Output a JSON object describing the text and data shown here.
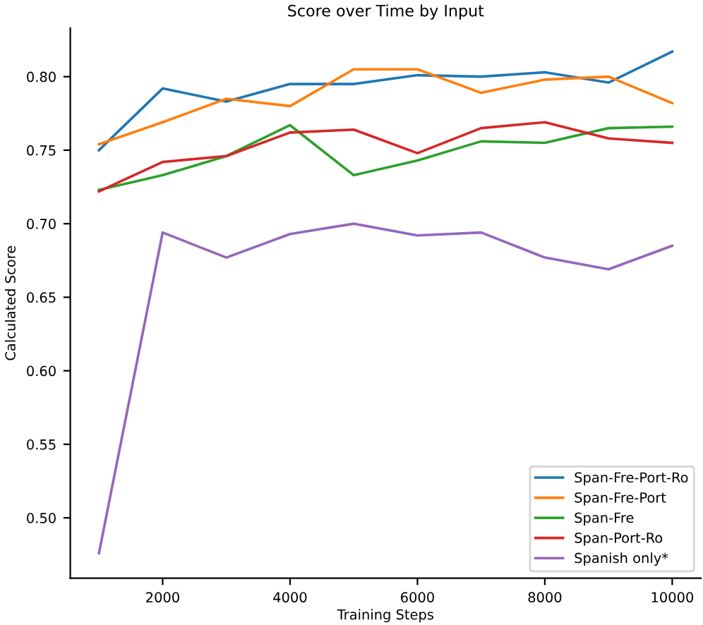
{
  "chart_data": {
    "type": "line",
    "title": "Score over Time by Input",
    "xlabel": "Training Steps",
    "ylabel": "Calculated Score",
    "x": [
      1000,
      2000,
      3000,
      4000,
      5000,
      6000,
      7000,
      8000,
      9000,
      10000
    ],
    "series": [
      {
        "name": "Span-Fre-Port-Ro",
        "color": "#1f77b4",
        "values": [
          0.75,
          0.792,
          0.783,
          0.795,
          0.795,
          0.801,
          0.8,
          0.803,
          0.796,
          0.817
        ]
      },
      {
        "name": "Span-Fre-Port",
        "color": "#ff7f0e",
        "values": [
          0.754,
          0.769,
          0.785,
          0.78,
          0.805,
          0.805,
          0.789,
          0.798,
          0.8,
          0.782
        ]
      },
      {
        "name": "Span-Fre",
        "color": "#2ca02c",
        "values": [
          0.723,
          0.733,
          0.746,
          0.767,
          0.733,
          0.743,
          0.756,
          0.755,
          0.765,
          0.766
        ]
      },
      {
        "name": "Span-Port-Ro",
        "color": "#d62728",
        "values": [
          0.722,
          0.742,
          0.746,
          0.762,
          0.764,
          0.748,
          0.765,
          0.769,
          0.758,
          0.755
        ]
      },
      {
        "name": "Spanish only*",
        "color": "#9467bd",
        "values": [
          0.476,
          0.694,
          0.677,
          0.693,
          0.7,
          0.692,
          0.694,
          0.677,
          0.669,
          0.685
        ]
      }
    ],
    "xlim": [
      550,
      10450
    ],
    "ylim": [
      0.459,
      0.833
    ],
    "xticks": [
      2000,
      4000,
      6000,
      8000,
      10000
    ],
    "yticks": [
      {
        "value": 0.5,
        "label": "0.50"
      },
      {
        "value": 0.55,
        "label": "0.55"
      },
      {
        "value": 0.6,
        "label": "0.60"
      },
      {
        "value": 0.65,
        "label": "0.65"
      },
      {
        "value": 0.7,
        "label": "0.70"
      },
      {
        "value": 0.75,
        "label": "0.75"
      },
      {
        "value": 0.8,
        "label": "0.80"
      }
    ],
    "grid": false,
    "legend": "bottom right",
    "marker": "none",
    "line_style": "solid"
  }
}
